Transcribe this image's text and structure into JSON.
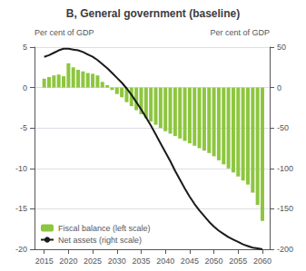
{
  "chart_data": {
    "type": "bar",
    "title": "B, General government (baseline)",
    "ylabel": "Per cent of GDP",
    "y2label": "Per cent of GDP",
    "x": [
      2015,
      2016,
      2017,
      2018,
      2019,
      2020,
      2021,
      2022,
      2023,
      2024,
      2025,
      2026,
      2027,
      2028,
      2029,
      2030,
      2031,
      2032,
      2033,
      2034,
      2035,
      2036,
      2037,
      2038,
      2039,
      2040,
      2041,
      2042,
      2043,
      2044,
      2045,
      2046,
      2047,
      2048,
      2049,
      2050,
      2051,
      2052,
      2053,
      2054,
      2055,
      2056,
      2057,
      2058,
      2059,
      2060
    ],
    "series": [
      {
        "name": "Fiscal balance (left scale)",
        "type": "bar",
        "color": "#8dc63f",
        "values": [
          1.1,
          1.3,
          1.5,
          1.6,
          1.4,
          3.0,
          2.5,
          2.2,
          2.0,
          1.8,
          1.7,
          1.5,
          0.7,
          0.3,
          -0.3,
          -0.8,
          -1.2,
          -1.8,
          -2.3,
          -2.8,
          -3.3,
          -3.8,
          -4.2,
          -4.6,
          -5.0,
          -5.4,
          -5.7,
          -6.0,
          -6.3,
          -6.6,
          -6.9,
          -7.2,
          -7.5,
          -7.8,
          -8.1,
          -8.5,
          -9.0,
          -9.5,
          -10.0,
          -10.5,
          -11.0,
          -11.5,
          -12.0,
          -13.0,
          -14.5,
          -16.5
        ]
      },
      {
        "name": "Net assets (right scale)",
        "type": "line",
        "color": "#1a1a1a",
        "axis": "y2",
        "values": [
          38,
          40,
          43,
          46,
          48,
          48,
          47,
          46,
          44,
          41,
          38,
          34,
          29,
          24,
          18,
          12,
          6,
          -1,
          -9,
          -18,
          -27,
          -37,
          -47,
          -58,
          -69,
          -80,
          -91,
          -103,
          -114,
          -125,
          -135,
          -144,
          -152,
          -159,
          -166,
          -172,
          -177,
          -181,
          -185,
          -188,
          -191,
          -194,
          -196,
          -198,
          -199,
          -200
        ]
      }
    ],
    "xlim": [
      2013,
      2061.5
    ],
    "xticks": [
      2015,
      2020,
      2025,
      2030,
      2035,
      2040,
      2045,
      2050,
      2055,
      2060
    ],
    "ylim": [
      -20,
      5
    ],
    "yticks": [
      5,
      0,
      -5,
      -10,
      -15,
      -20
    ],
    "y2lim": [
      -200,
      50
    ],
    "y2ticks": [
      50,
      0,
      -50,
      -100,
      -150,
      -200
    ],
    "grid": true,
    "legend": "lower left"
  }
}
